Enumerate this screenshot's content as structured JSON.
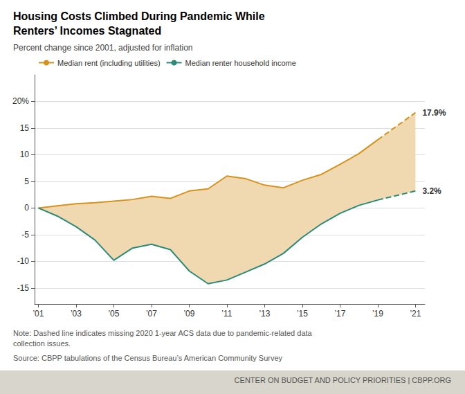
{
  "chart_data": {
    "type": "line",
    "title": "Housing Costs Climbed During Pandemic While\nRenters’ Incomes Stagnated",
    "subtitle": "Percent change since 2001, adjusted for inflation",
    "notes": [
      "Note: Dashed line indicates missing 2020 1-year ACS data due to pandemic-related data\ncollection issues.",
      "Source: CBPP tabulations of the Census Bureau’s American Community Survey"
    ],
    "footer": "CENTER ON BUDGET AND POLICY PRIORITIES | CBPP.ORG",
    "x": [
      2001,
      2002,
      2003,
      2004,
      2005,
      2006,
      2007,
      2008,
      2009,
      2010,
      2011,
      2012,
      2013,
      2014,
      2015,
      2016,
      2017,
      2018,
      2019,
      2021
    ],
    "xlim": [
      2000.8,
      2021.5
    ],
    "xticks": [
      {
        "value": 2001,
        "label": "’01"
      },
      {
        "value": 2003,
        "label": "’03"
      },
      {
        "value": 2005,
        "label": "’05"
      },
      {
        "value": 2007,
        "label": "’07"
      },
      {
        "value": 2009,
        "label": "’09"
      },
      {
        "value": 2011,
        "label": "’11"
      },
      {
        "value": 2013,
        "label": "’13"
      },
      {
        "value": 2015,
        "label": "’15"
      },
      {
        "value": 2017,
        "label": "’17"
      },
      {
        "value": 2019,
        "label": "’19"
      },
      {
        "value": 2021,
        "label": "’21"
      }
    ],
    "ylim": [
      -18,
      25
    ],
    "yticks": [
      -15,
      -10,
      -5,
      0,
      5,
      10,
      15,
      {
        "value": 20,
        "label": "20%"
      }
    ],
    "grid": true,
    "legend": "upper left",
    "series": [
      {
        "type": "band",
        "color": "#f0d9b0",
        "between": [
          "Median rent (including utilities)",
          "Median renter household income"
        ]
      },
      {
        "name": "Median rent (including utilities)",
        "color": "#d4921e",
        "line_style": "solid",
        "values": [
          0,
          0.4,
          0.8,
          1.0,
          1.3,
          1.6,
          2.2,
          1.8,
          3.2,
          3.6,
          6.0,
          5.5,
          4.3,
          3.8,
          5.2,
          6.3,
          8.2,
          10.2,
          12.8,
          null
        ]
      },
      {
        "name": "Median rent (including utilities)",
        "color": "#d4921e",
        "line_style": "dashed",
        "values": [
          null,
          null,
          null,
          null,
          null,
          null,
          null,
          null,
          null,
          null,
          null,
          null,
          null,
          null,
          null,
          null,
          null,
          null,
          12.8,
          17.9
        ]
      },
      {
        "name": "Median renter household income",
        "color": "#2b8a78",
        "line_style": "solid",
        "values": [
          0,
          -1.5,
          -3.5,
          -6.0,
          -9.8,
          -7.5,
          -6.8,
          -7.8,
          -11.8,
          -14.2,
          -13.5,
          -12.0,
          -10.5,
          -8.5,
          -5.5,
          -3.0,
          -1.0,
          0.5,
          1.5,
          null
        ]
      },
      {
        "name": "Median renter household income",
        "color": "#2b8a78",
        "line_style": "dashed",
        "values": [
          null,
          null,
          null,
          null,
          null,
          null,
          null,
          null,
          null,
          null,
          null,
          null,
          null,
          null,
          null,
          null,
          null,
          null,
          1.5,
          3.2
        ]
      }
    ],
    "annotations": [
      {
        "text": "17.9%",
        "x": 2021,
        "y": 17.9
      },
      {
        "text": "3.2%",
        "x": 2021,
        "y": 3.2
      }
    ]
  }
}
